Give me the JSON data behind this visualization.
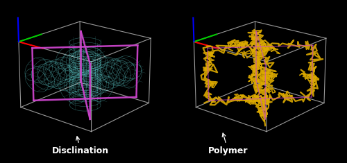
{
  "background_color": "#000000",
  "fig_width": 5.0,
  "fig_height": 2.35,
  "dpi": 100,
  "left_label": "Disclination",
  "right_label": "Polymer",
  "text_color": "#ffffff",
  "font_size_label": 9,
  "box_color": "#aaaaaa",
  "cyan_color": "#5fcfcf",
  "magenta_color": "#cc44cc",
  "yellow_color": "#ddaa00",
  "red_color": "#ff0000",
  "green_color": "#00cc00",
  "blue_color": "#0000ff"
}
